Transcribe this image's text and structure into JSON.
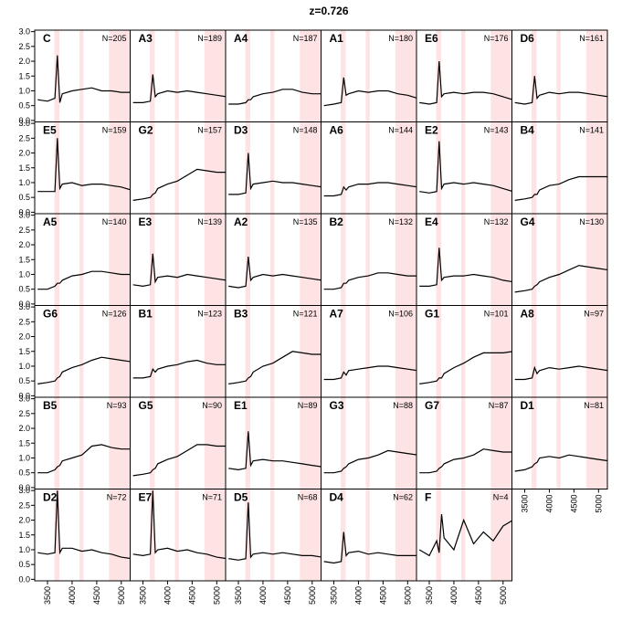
{
  "chart_data": {
    "type": "line",
    "title": "z=0.726",
    "x": [
      3300,
      3500,
      3650,
      3700,
      3750,
      3800,
      4000,
      4200,
      4400,
      4600,
      4800,
      5000,
      5200
    ],
    "xlim": [
      3240,
      5180
    ],
    "xticks": [
      3500,
      4000,
      4500,
      5000
    ],
    "ylim": [
      -0.05,
      3.05
    ],
    "yticks": [
      {
        "value": 0,
        "label": "0.0"
      },
      0.5,
      {
        "value": 1,
        "label": "1.0"
      },
      1.5,
      {
        "value": 2,
        "label": "2.0"
      },
      2.5,
      {
        "value": 3,
        "label": "3.0"
      }
    ],
    "line_color": "#000000",
    "shade_color": "#fde3e3",
    "shaded_regions": [
      [
        3640,
        3740
      ],
      [
        4150,
        4230
      ],
      [
        4750,
        5180
      ]
    ],
    "panels": [
      {
        "label": "C",
        "n_label": "N=205",
        "values": [
          0.7,
          0.65,
          0.75,
          2.2,
          0.6,
          0.9,
          1.0,
          1.05,
          1.1,
          1.0,
          1.0,
          0.95,
          0.95
        ]
      },
      {
        "label": "A3",
        "n_label": "N=189",
        "values": [
          0.6,
          0.6,
          0.65,
          1.55,
          0.8,
          0.9,
          1.0,
          0.95,
          1.0,
          0.95,
          0.9,
          0.85,
          0.8
        ]
      },
      {
        "label": "A4",
        "n_label": "N=187",
        "values": [
          0.55,
          0.55,
          0.6,
          0.7,
          0.7,
          0.8,
          0.9,
          0.95,
          1.05,
          1.05,
          0.95,
          0.9,
          0.9
        ]
      },
      {
        "label": "A1",
        "n_label": "N=180",
        "values": [
          0.5,
          0.55,
          0.6,
          1.45,
          0.85,
          0.9,
          1.0,
          0.95,
          1.0,
          1.0,
          0.9,
          0.85,
          0.75
        ]
      },
      {
        "label": "E6",
        "n_label": "N=176",
        "values": [
          0.6,
          0.55,
          0.6,
          2.0,
          0.8,
          0.9,
          0.95,
          0.9,
          0.95,
          0.95,
          0.9,
          0.8,
          0.7
        ]
      },
      {
        "label": "D6",
        "n_label": "N=161",
        "values": [
          0.6,
          0.55,
          0.6,
          1.5,
          0.75,
          0.85,
          0.95,
          0.9,
          0.95,
          0.95,
          0.9,
          0.85,
          0.8
        ]
      },
      {
        "label": "E5",
        "n_label": "N=159",
        "values": [
          0.7,
          0.7,
          0.7,
          2.5,
          0.8,
          0.95,
          1.0,
          0.9,
          0.95,
          0.95,
          0.9,
          0.85,
          0.75
        ]
      },
      {
        "label": "G2",
        "n_label": "N=157",
        "values": [
          0.4,
          0.45,
          0.5,
          0.6,
          0.65,
          0.8,
          0.95,
          1.05,
          1.25,
          1.45,
          1.4,
          1.35,
          1.35
        ]
      },
      {
        "label": "D3",
        "n_label": "N=148",
        "values": [
          0.6,
          0.6,
          0.65,
          2.0,
          0.8,
          0.95,
          1.0,
          1.05,
          1.0,
          1.0,
          0.95,
          0.9,
          0.85
        ]
      },
      {
        "label": "A6",
        "n_label": "N=144",
        "values": [
          0.55,
          0.55,
          0.6,
          0.85,
          0.75,
          0.85,
          0.95,
          0.95,
          1.0,
          1.0,
          0.95,
          0.9,
          0.85
        ]
      },
      {
        "label": "E2",
        "n_label": "N=143",
        "values": [
          0.7,
          0.65,
          0.7,
          2.4,
          0.8,
          0.95,
          1.0,
          0.95,
          1.0,
          0.95,
          0.9,
          0.8,
          0.7
        ]
      },
      {
        "label": "B4",
        "n_label": "N=141",
        "values": [
          0.4,
          0.45,
          0.5,
          0.6,
          0.6,
          0.75,
          0.9,
          0.95,
          1.1,
          1.2,
          1.2,
          1.2,
          1.2
        ]
      },
      {
        "label": "A5",
        "n_label": "N=140",
        "values": [
          0.5,
          0.5,
          0.6,
          0.7,
          0.7,
          0.8,
          0.95,
          1.0,
          1.1,
          1.1,
          1.05,
          1.0,
          1.0
        ]
      },
      {
        "label": "E3",
        "n_label": "N=139",
        "values": [
          0.65,
          0.6,
          0.65,
          1.7,
          0.75,
          0.9,
          0.95,
          0.9,
          1.0,
          0.95,
          0.9,
          0.85,
          0.8
        ]
      },
      {
        "label": "A2",
        "n_label": "N=135",
        "values": [
          0.6,
          0.55,
          0.6,
          1.6,
          0.8,
          0.9,
          1.0,
          0.95,
          1.0,
          0.95,
          0.9,
          0.85,
          0.8
        ]
      },
      {
        "label": "B2",
        "n_label": "N=132",
        "values": [
          0.5,
          0.5,
          0.55,
          0.7,
          0.7,
          0.8,
          0.9,
          0.95,
          1.05,
          1.05,
          1.0,
          0.95,
          0.95
        ]
      },
      {
        "label": "E4",
        "n_label": "N=132",
        "values": [
          0.6,
          0.6,
          0.65,
          1.9,
          0.8,
          0.9,
          0.95,
          0.95,
          1.0,
          0.95,
          0.9,
          0.8,
          0.75
        ]
      },
      {
        "label": "G4",
        "n_label": "N=130",
        "values": [
          0.4,
          0.45,
          0.5,
          0.6,
          0.65,
          0.75,
          0.9,
          1.0,
          1.15,
          1.3,
          1.25,
          1.2,
          1.15
        ]
      },
      {
        "label": "G6",
        "n_label": "N=126",
        "values": [
          0.4,
          0.45,
          0.5,
          0.6,
          0.65,
          0.8,
          0.95,
          1.05,
          1.2,
          1.3,
          1.25,
          1.2,
          1.15
        ]
      },
      {
        "label": "B1",
        "n_label": "N=123",
        "values": [
          0.6,
          0.6,
          0.65,
          0.9,
          0.8,
          0.9,
          1.0,
          1.05,
          1.15,
          1.2,
          1.1,
          1.05,
          1.05
        ]
      },
      {
        "label": "B3",
        "n_label": "N=121",
        "values": [
          0.4,
          0.45,
          0.5,
          0.6,
          0.65,
          0.8,
          1.0,
          1.1,
          1.3,
          1.5,
          1.45,
          1.4,
          1.4
        ]
      },
      {
        "label": "A7",
        "n_label": "N=106",
        "values": [
          0.55,
          0.55,
          0.6,
          0.8,
          0.7,
          0.85,
          0.9,
          0.95,
          1.0,
          1.0,
          0.95,
          0.9,
          0.85
        ]
      },
      {
        "label": "G1",
        "n_label": "N=101",
        "values": [
          0.4,
          0.45,
          0.5,
          0.6,
          0.6,
          0.75,
          0.95,
          1.1,
          1.3,
          1.45,
          1.45,
          1.45,
          1.5
        ]
      },
      {
        "label": "A8",
        "n_label": "N=97",
        "values": [
          0.55,
          0.55,
          0.6,
          0.95,
          0.75,
          0.85,
          0.95,
          0.9,
          0.95,
          1.0,
          0.95,
          0.9,
          0.85
        ]
      },
      {
        "label": "B5",
        "n_label": "N=93",
        "values": [
          0.5,
          0.5,
          0.6,
          0.7,
          0.75,
          0.9,
          1.0,
          1.1,
          1.4,
          1.45,
          1.35,
          1.3,
          1.3
        ]
      },
      {
        "label": "G5",
        "n_label": "N=90",
        "values": [
          0.4,
          0.45,
          0.5,
          0.6,
          0.65,
          0.8,
          0.95,
          1.05,
          1.25,
          1.45,
          1.45,
          1.4,
          1.4
        ]
      },
      {
        "label": "E1",
        "n_label": "N=89",
        "values": [
          0.65,
          0.6,
          0.65,
          1.9,
          0.75,
          0.9,
          0.95,
          0.9,
          0.9,
          0.85,
          0.8,
          0.75,
          0.7
        ]
      },
      {
        "label": "G3",
        "n_label": "N=88",
        "values": [
          0.5,
          0.5,
          0.55,
          0.65,
          0.7,
          0.8,
          0.95,
          1.0,
          1.1,
          1.25,
          1.2,
          1.15,
          1.1
        ]
      },
      {
        "label": "G7",
        "n_label": "N=87",
        "values": [
          0.5,
          0.5,
          0.55,
          0.65,
          0.7,
          0.8,
          0.95,
          1.0,
          1.1,
          1.3,
          1.25,
          1.2,
          1.2
        ]
      },
      {
        "label": "D1",
        "n_label": "N=81",
        "values": [
          0.55,
          0.6,
          0.7,
          0.8,
          0.85,
          1.0,
          1.05,
          1.0,
          1.1,
          1.05,
          1.0,
          0.95,
          0.9
        ]
      },
      {
        "label": "D2",
        "n_label": "N=72",
        "values": [
          0.9,
          0.85,
          0.9,
          3.0,
          0.9,
          1.05,
          1.05,
          0.95,
          1.0,
          0.9,
          0.85,
          0.75,
          0.7
        ]
      },
      {
        "label": "E7",
        "n_label": "N=71",
        "values": [
          0.85,
          0.8,
          0.85,
          3.0,
          0.9,
          1.0,
          1.05,
          0.95,
          1.0,
          0.9,
          0.85,
          0.75,
          0.7
        ]
      },
      {
        "label": "D5",
        "n_label": "N=68",
        "values": [
          0.7,
          0.65,
          0.7,
          2.6,
          0.75,
          0.85,
          0.9,
          0.85,
          0.9,
          0.85,
          0.8,
          0.8,
          0.75
        ]
      },
      {
        "label": "D4",
        "n_label": "N=62",
        "values": [
          0.6,
          0.55,
          0.6,
          1.6,
          0.8,
          0.9,
          0.95,
          0.85,
          0.9,
          0.85,
          0.8,
          0.8,
          0.8
        ]
      },
      {
        "label": "F",
        "n_label": "N=4",
        "values": [
          1.0,
          0.8,
          1.3,
          0.9,
          2.2,
          1.4,
          1.0,
          2.0,
          1.2,
          1.6,
          1.3,
          1.8,
          2.0
        ]
      }
    ]
  }
}
